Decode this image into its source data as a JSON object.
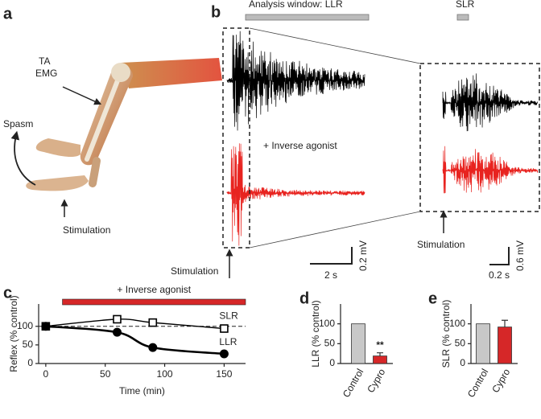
{
  "panel_labels": [
    "a",
    "b",
    "c",
    "d",
    "e"
  ],
  "panel_a": {
    "emg_label": [
      "TA",
      "EMG"
    ],
    "spasm": "Spasm",
    "stimulation": "Stimulation"
  },
  "panel_b": {
    "llr_window": "Analysis window: LLR",
    "slr_window": "SLR",
    "condition": "+ Inverse agonist",
    "stimulation": [
      "Stimulation",
      "Stimulation"
    ],
    "scale_left": {
      "time": "2 s",
      "amplitude": "0.2 mV"
    },
    "scale_right": {
      "time": "0.2 s",
      "amplitude": "0.6 mV"
    }
  },
  "chart_data": [
    {
      "type": "line",
      "x": [
        0,
        60,
        90,
        150
      ],
      "series": [
        {
          "name": "SLR",
          "color": "#000000",
          "marker": "open-square",
          "values": [
            100,
            119,
            110,
            94
          ]
        },
        {
          "name": "LLR",
          "color": "#000000",
          "marker": "filled-circle",
          "values": [
            100,
            84,
            43,
            26
          ]
        }
      ],
      "xlim": [
        -6,
        168
      ],
      "ylim": [
        0,
        160
      ],
      "xticks": [
        0,
        50,
        100,
        150
      ],
      "yticks": [
        0,
        50,
        100
      ],
      "xlabel": "Time (min)",
      "ylabel": "Reflex (% control)",
      "reference_line": 100,
      "treatment": {
        "label": "+ Inverse agonist",
        "span": [
          14,
          168
        ],
        "color": "#d62728"
      }
    },
    {
      "type": "bar",
      "categories": [
        "Control",
        "Cypro"
      ],
      "values": [
        100,
        19
      ],
      "errors": [
        null,
        8
      ],
      "colors": [
        "#c8c8c8",
        "#d62728"
      ],
      "ylim": [
        0,
        150
      ],
      "yticks": [
        0,
        50,
        100
      ],
      "ylabel": "LLR (% control)",
      "annotation": "**"
    },
    {
      "type": "bar",
      "categories": [
        "Control",
        "Cypro"
      ],
      "values": [
        100,
        92
      ],
      "errors": [
        null,
        17
      ],
      "colors": [
        "#c8c8c8",
        "#d62728"
      ],
      "ylim": [
        0,
        150
      ],
      "yticks": [
        0,
        50,
        100
      ],
      "ylabel": "SLR (% control)"
    }
  ]
}
